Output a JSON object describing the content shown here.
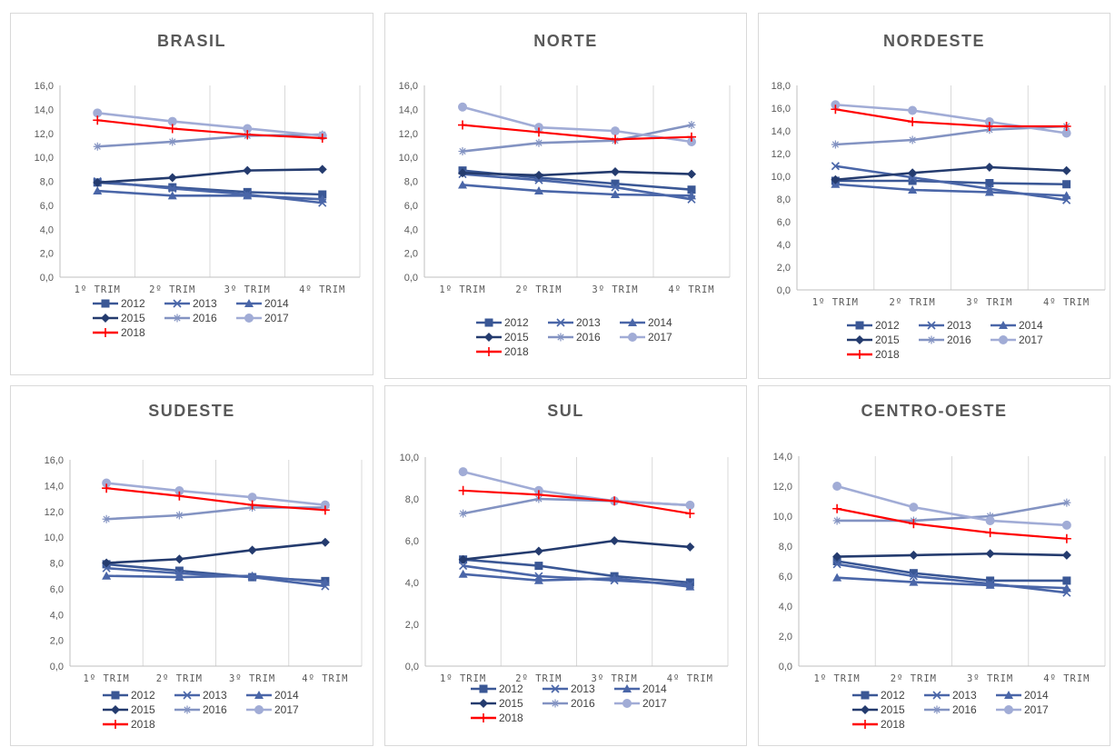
{
  "styles": {
    "axis_color": "#bfbfbf",
    "grid_color": "#d9d9d9",
    "tick_color": "#595959",
    "title_color": "#595959"
  },
  "legend_series": [
    {
      "name": "2012",
      "color": "#3a5795",
      "marker": "square"
    },
    {
      "name": "2013",
      "color": "#4a66a8",
      "marker": "x"
    },
    {
      "name": "2014",
      "color": "#4a66a8",
      "marker": "triangle"
    },
    {
      "name": "2015",
      "color": "#243b6e",
      "marker": "diamond"
    },
    {
      "name": "2016",
      "color": "#8393c2",
      "marker": "star"
    },
    {
      "name": "2017",
      "color": "#a1acd6",
      "marker": "circle"
    },
    {
      "name": "2018",
      "color": "#ff0000",
      "marker": "plus"
    }
  ],
  "chart_data": [
    {
      "type": "line",
      "title": "BRASIL",
      "categories": [
        "1º TRIM",
        "2º TRIM",
        "3º TRIM",
        "4º TRIM"
      ],
      "ylim": [
        0,
        16
      ],
      "ystep": 2,
      "ytick_labels": [
        "0,0",
        "2,0",
        "4,0",
        "6,0",
        "8,0",
        "10,0",
        "12,0",
        "14,0",
        "16,0"
      ],
      "grid": "vertical",
      "legend": "bottom",
      "series": [
        {
          "name": "2012",
          "values": [
            7.9,
            7.5,
            7.1,
            6.9
          ]
        },
        {
          "name": "2013",
          "values": [
            8.0,
            7.4,
            6.9,
            6.2
          ]
        },
        {
          "name": "2014",
          "values": [
            7.2,
            6.8,
            6.8,
            6.5
          ]
        },
        {
          "name": "2015",
          "values": [
            7.9,
            8.3,
            8.9,
            9.0
          ]
        },
        {
          "name": "2016",
          "values": [
            10.9,
            11.3,
            11.8,
            11.9
          ]
        },
        {
          "name": "2017",
          "values": [
            13.7,
            13.0,
            12.4,
            11.8
          ]
        },
        {
          "name": "2018",
          "values": [
            13.1,
            12.4,
            11.9,
            11.6
          ]
        }
      ]
    },
    {
      "type": "line",
      "title": "NORTE",
      "categories": [
        "1º TRIM",
        "2º TRIM",
        "3º TRIM",
        "4º TRIM"
      ],
      "ylim": [
        0,
        16
      ],
      "ystep": 2,
      "ytick_labels": [
        "0,0",
        "2,0",
        "4,0",
        "6,0",
        "8,0",
        "10,0",
        "12,0",
        "14,0",
        "16,0"
      ],
      "grid": "vertical",
      "legend": "bottom",
      "series": [
        {
          "name": "2012",
          "values": [
            8.9,
            8.3,
            7.8,
            7.3
          ]
        },
        {
          "name": "2013",
          "values": [
            8.6,
            8.1,
            7.5,
            6.5
          ]
        },
        {
          "name": "2014",
          "values": [
            7.7,
            7.2,
            6.9,
            6.8
          ]
        },
        {
          "name": "2015",
          "values": [
            8.7,
            8.5,
            8.8,
            8.6
          ]
        },
        {
          "name": "2016",
          "values": [
            10.5,
            11.2,
            11.4,
            12.7
          ]
        },
        {
          "name": "2017",
          "values": [
            14.2,
            12.5,
            12.2,
            11.3
          ]
        },
        {
          "name": "2018",
          "values": [
            12.7,
            12.1,
            11.5,
            11.7
          ]
        }
      ]
    },
    {
      "type": "line",
      "title": "NORDESTE",
      "categories": [
        "1º TRIM",
        "2º TRIM",
        "3º TRIM",
        "4º TRIM"
      ],
      "ylim": [
        0,
        18
      ],
      "ystep": 2,
      "ytick_labels": [
        "0,0",
        "2,0",
        "4,0",
        "6,0",
        "8,0",
        "10,0",
        "12,0",
        "14,0",
        "16,0",
        "18,0"
      ],
      "grid": "vertical",
      "legend": "bottom",
      "series": [
        {
          "name": "2012",
          "values": [
            9.6,
            9.6,
            9.4,
            9.3
          ]
        },
        {
          "name": "2013",
          "values": [
            10.9,
            9.9,
            8.9,
            7.9
          ]
        },
        {
          "name": "2014",
          "values": [
            9.3,
            8.8,
            8.6,
            8.3
          ]
        },
        {
          "name": "2015",
          "values": [
            9.7,
            10.3,
            10.8,
            10.5
          ]
        },
        {
          "name": "2016",
          "values": [
            12.8,
            13.2,
            14.1,
            14.4
          ]
        },
        {
          "name": "2017",
          "values": [
            16.3,
            15.8,
            14.8,
            13.8
          ]
        },
        {
          "name": "2018",
          "values": [
            15.9,
            14.8,
            14.4,
            14.4
          ]
        }
      ]
    },
    {
      "type": "line",
      "title": "SUDESTE",
      "categories": [
        "1º TRIM",
        "2º TRIM",
        "3º TRIM",
        "4º TRIM"
      ],
      "ylim": [
        0,
        16
      ],
      "ystep": 2,
      "ytick_labels": [
        "0,0",
        "2,0",
        "4,0",
        "6,0",
        "8,0",
        "10,0",
        "12,0",
        "14,0",
        "16,0"
      ],
      "grid": "vertical",
      "legend": "bottom",
      "series": [
        {
          "name": "2012",
          "values": [
            7.9,
            7.4,
            6.9,
            6.6
          ]
        },
        {
          "name": "2013",
          "values": [
            7.6,
            7.2,
            6.9,
            6.2
          ]
        },
        {
          "name": "2014",
          "values": [
            7.0,
            6.9,
            7.0,
            6.5
          ]
        },
        {
          "name": "2015",
          "values": [
            8.0,
            8.3,
            9.0,
            9.6
          ]
        },
        {
          "name": "2016",
          "values": [
            11.4,
            11.7,
            12.3,
            12.3
          ]
        },
        {
          "name": "2017",
          "values": [
            14.2,
            13.6,
            13.1,
            12.5
          ]
        },
        {
          "name": "2018",
          "values": [
            13.8,
            13.2,
            12.5,
            12.1
          ]
        }
      ]
    },
    {
      "type": "line",
      "title": "SUL",
      "categories": [
        "1º TRIM",
        "2º TRIM",
        "3º TRIM",
        "4º TRIM"
      ],
      "ylim": [
        0,
        10
      ],
      "ystep": 2,
      "ytick_labels": [
        "0,0",
        "2,0",
        "4,0",
        "6,0",
        "8,0",
        "10,0"
      ],
      "grid": "vertical",
      "legend": "bottom",
      "series": [
        {
          "name": "2012",
          "values": [
            5.1,
            4.8,
            4.3,
            4.0
          ]
        },
        {
          "name": "2013",
          "values": [
            4.8,
            4.3,
            4.1,
            3.9
          ]
        },
        {
          "name": "2014",
          "values": [
            4.4,
            4.1,
            4.2,
            3.8
          ]
        },
        {
          "name": "2015",
          "values": [
            5.1,
            5.5,
            6.0,
            5.7
          ]
        },
        {
          "name": "2016",
          "values": [
            7.3,
            8.0,
            7.9,
            7.7
          ]
        },
        {
          "name": "2017",
          "values": [
            9.3,
            8.4,
            7.9,
            7.7
          ]
        },
        {
          "name": "2018",
          "values": [
            8.4,
            8.2,
            7.9,
            7.3
          ]
        }
      ]
    },
    {
      "type": "line",
      "title": "CENTRO-OESTE",
      "categories": [
        "1º TRIM",
        "2º TRIM",
        "3º TRIM",
        "4º TRIM"
      ],
      "ylim": [
        0,
        14
      ],
      "ystep": 2,
      "ytick_labels": [
        "0,0",
        "2,0",
        "4,0",
        "6,0",
        "8,0",
        "10,0",
        "12,0",
        "14,0"
      ],
      "grid": "vertical",
      "legend": "bottom",
      "series": [
        {
          "name": "2012",
          "values": [
            7.0,
            6.2,
            5.7,
            5.7
          ]
        },
        {
          "name": "2013",
          "values": [
            6.8,
            6.0,
            5.5,
            4.9
          ]
        },
        {
          "name": "2014",
          "values": [
            5.9,
            5.6,
            5.4,
            5.2
          ]
        },
        {
          "name": "2015",
          "values": [
            7.3,
            7.4,
            7.5,
            7.4
          ]
        },
        {
          "name": "2016",
          "values": [
            9.7,
            9.7,
            10.0,
            10.9
          ]
        },
        {
          "name": "2017",
          "values": [
            12.0,
            10.6,
            9.7,
            9.4
          ]
        },
        {
          "name": "2018",
          "values": [
            10.5,
            9.5,
            8.9,
            8.5
          ]
        }
      ]
    }
  ]
}
